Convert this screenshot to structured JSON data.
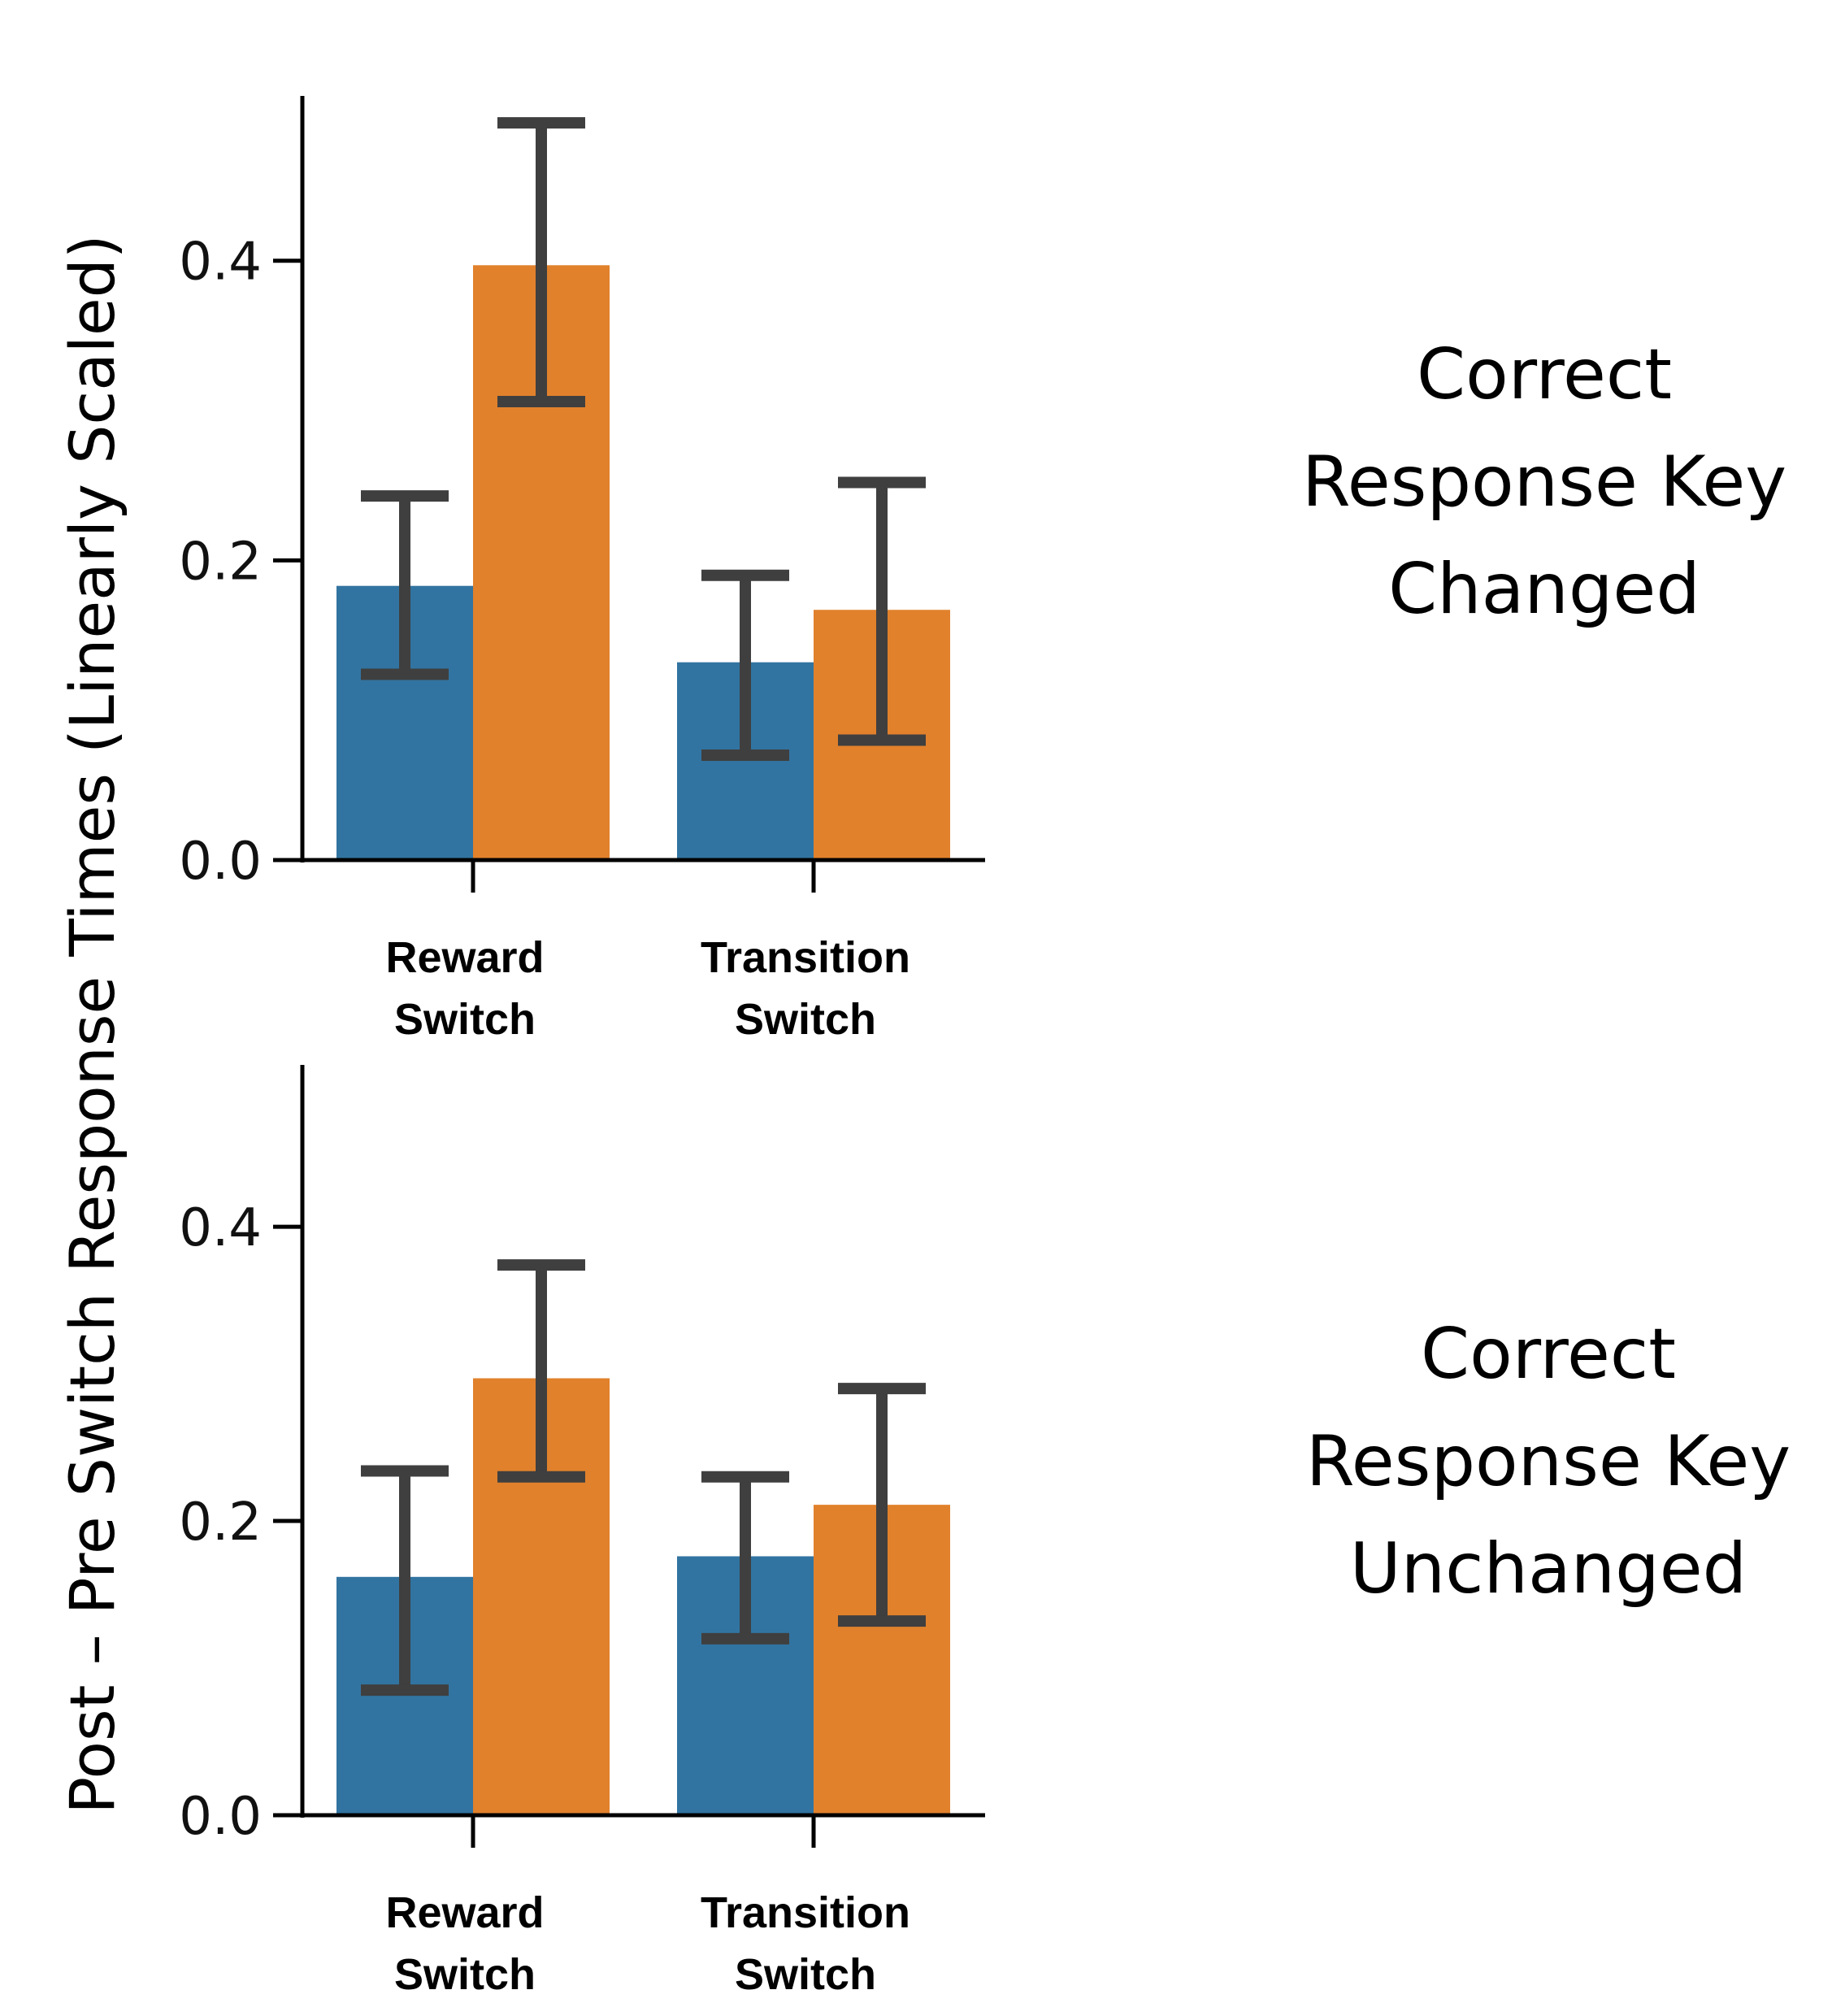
{
  "figure": {
    "ylabel": "Post – Pre Switch Response Times (Linearly Scaled)"
  },
  "chart_data": [
    {
      "type": "bar",
      "title": "Correct Response Key Changed",
      "title_lines": [
        "Correct",
        "Response Key",
        "Changed"
      ],
      "categories": [
        "Reward Switch",
        "Transition Switch"
      ],
      "category_lines": [
        [
          "Reward",
          "Switch"
        ],
        [
          "Transition",
          "Switch"
        ]
      ],
      "ylim": [
        0,
        0.51
      ],
      "yticks": [
        0.0,
        0.2,
        0.4
      ],
      "ytick_labels": [
        "0.0",
        "0.2",
        "0.4"
      ],
      "series": [
        {
          "color": "#3274a1",
          "values": [
            0.183,
            0.132
          ],
          "err_low": [
            0.124,
            0.07
          ],
          "err_high": [
            0.243,
            0.19
          ]
        },
        {
          "color": "#e1812c",
          "values": [
            0.397,
            0.167
          ],
          "err_low": [
            0.306,
            0.08
          ],
          "err_high": [
            0.492,
            0.252
          ]
        }
      ],
      "error_bar_color": "#3f3f3f"
    },
    {
      "type": "bar",
      "title": "Correct Response Key Unchanged",
      "title_lines": [
        "Correct",
        "Response Key",
        "Unchanged"
      ],
      "categories": [
        "Reward Switch",
        "Transition Switch"
      ],
      "category_lines": [
        [
          "Reward",
          "Switch"
        ],
        [
          "Transition",
          "Switch"
        ]
      ],
      "ylim": [
        0,
        0.51
      ],
      "yticks": [
        0.0,
        0.2,
        0.4
      ],
      "ytick_labels": [
        "0.0",
        "0.2",
        "0.4"
      ],
      "series": [
        {
          "color": "#3274a1",
          "values": [
            0.162,
            0.176
          ],
          "err_low": [
            0.085,
            0.12
          ],
          "err_high": [
            0.234,
            0.23
          ]
        },
        {
          "color": "#e1812c",
          "values": [
            0.297,
            0.211
          ],
          "err_low": [
            0.23,
            0.132
          ],
          "err_high": [
            0.374,
            0.29
          ]
        }
      ],
      "error_bar_color": "#3f3f3f"
    }
  ]
}
